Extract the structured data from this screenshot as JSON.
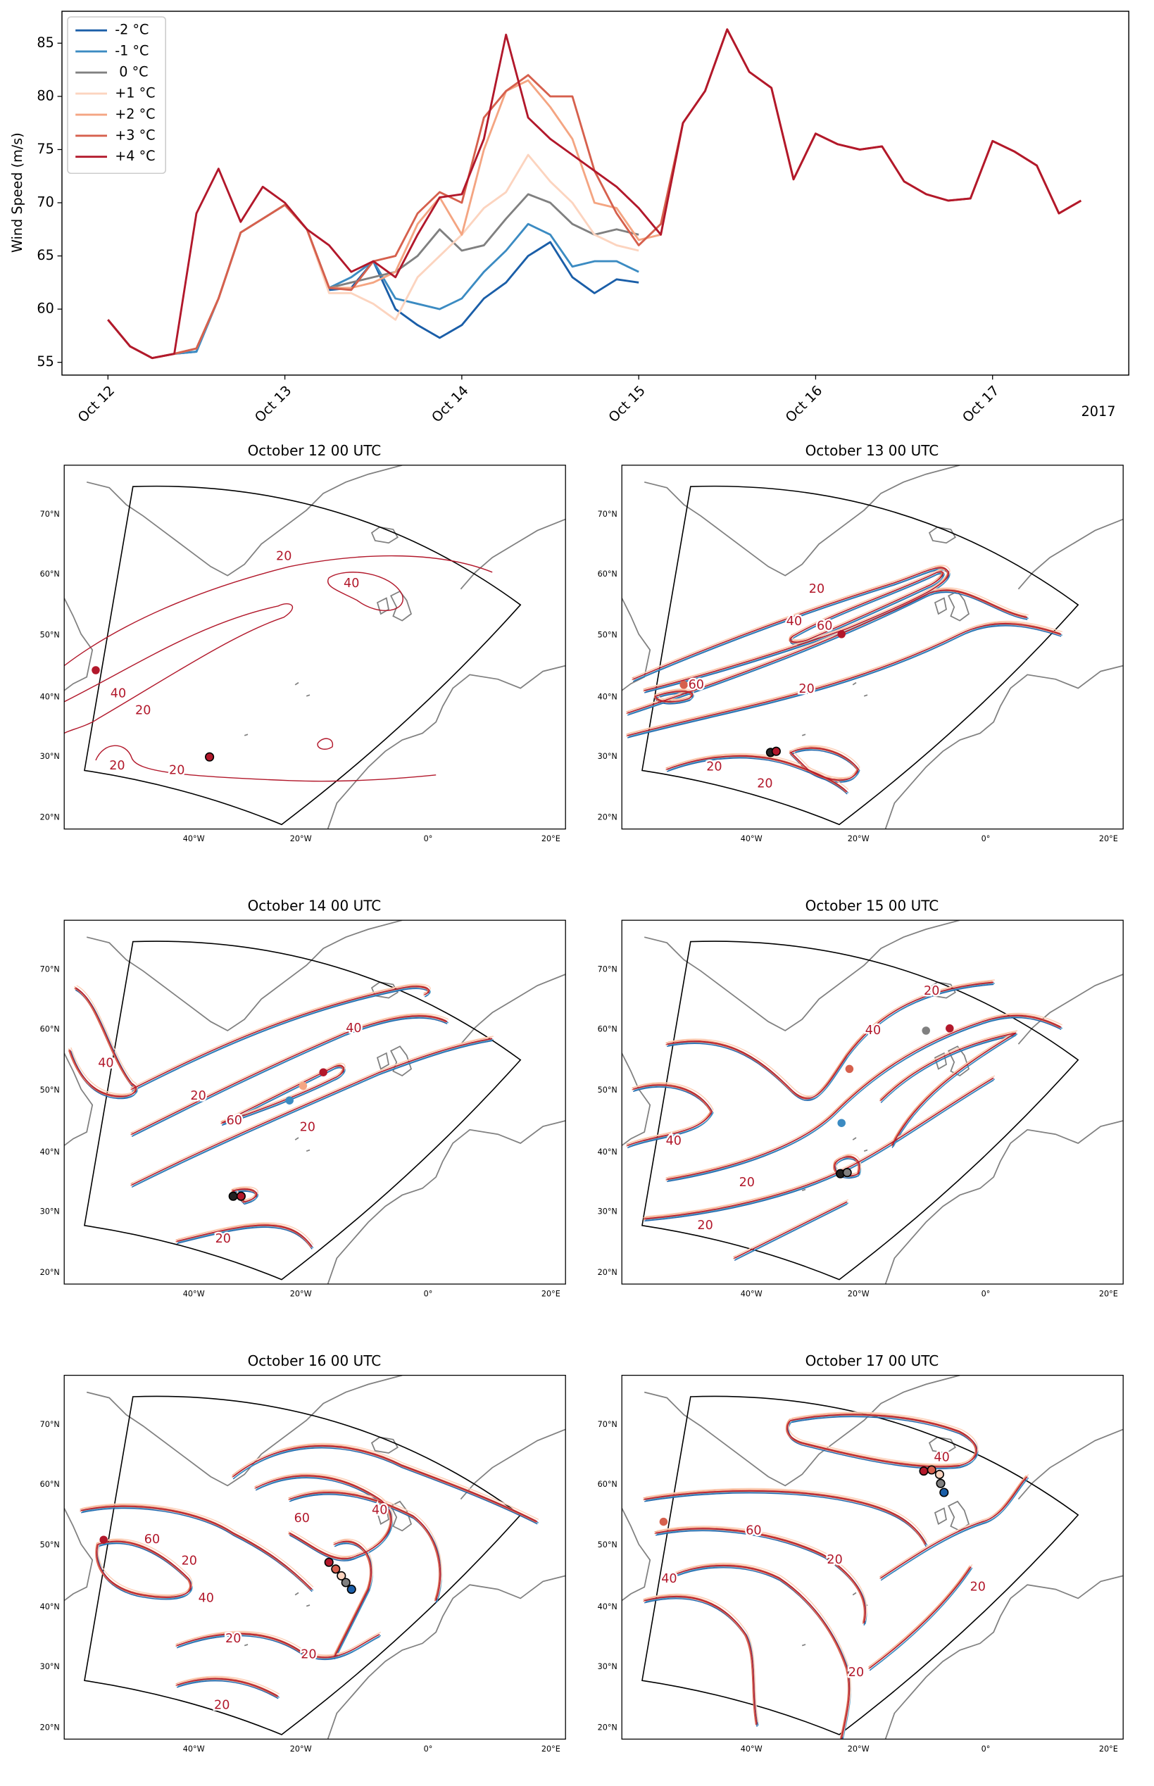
{
  "chart_data": {
    "type": "line",
    "y_label": "Wind Speed (m/s)",
    "x_offset_label": "2017",
    "x": [
      12,
      12.125,
      12.25,
      12.375,
      12.5,
      12.625,
      12.75,
      12.875,
      13,
      13.125,
      13.25,
      13.375,
      13.5,
      13.625,
      13.75,
      13.875,
      14,
      14.125,
      14.25,
      14.375,
      14.5,
      14.625,
      14.75,
      14.875,
      15,
      15.125,
      15.25,
      15.375,
      15.5,
      15.625,
      15.75,
      15.875,
      16,
      16.125,
      16.25,
      16.375,
      16.5,
      16.625,
      16.75,
      16.875,
      17,
      17.125,
      17.25,
      17.375,
      17.5
    ],
    "xlim": [
      11.74,
      17.77
    ],
    "xticks": [
      {
        "value": 12,
        "label": "Oct 12"
      },
      {
        "value": 13,
        "label": "Oct 13"
      },
      {
        "value": 14,
        "label": "Oct 14"
      },
      {
        "value": 15,
        "label": "Oct 15"
      },
      {
        "value": 16,
        "label": "Oct 16"
      },
      {
        "value": 17,
        "label": "Oct 17"
      }
    ],
    "ylim": [
      53.8,
      88.0
    ],
    "yticks": [
      55,
      60,
      65,
      70,
      75,
      80,
      85
    ],
    "legend": "upper left",
    "series": [
      {
        "name": "-2 °C",
        "color": "#1a5ea8",
        "values": [
          59,
          56.5,
          55.4,
          55.8,
          56,
          61,
          67.2,
          68.5,
          69.8,
          67.5,
          61.8,
          62,
          64.5,
          60,
          58.5,
          57.3,
          58.5,
          61,
          62.5,
          65,
          66.3,
          63,
          61.5,
          62.8,
          62.5,
          null,
          null,
          null,
          null,
          null,
          null,
          null,
          null,
          null,
          null,
          null,
          null,
          null,
          null,
          null,
          null,
          null,
          null,
          null,
          null
        ]
      },
      {
        "name": "-1 °C",
        "color": "#3b8bc2",
        "values": [
          59,
          56.5,
          55.4,
          55.8,
          56,
          61,
          67.2,
          68.5,
          69.8,
          67.5,
          62,
          63,
          64.5,
          61,
          60.5,
          60,
          61,
          63.5,
          65.5,
          68,
          67,
          64,
          64.5,
          64.5,
          63.5,
          null,
          null,
          null,
          null,
          null,
          null,
          null,
          null,
          null,
          null,
          null,
          null,
          null,
          null,
          null,
          null,
          null,
          null,
          null,
          null
        ]
      },
      {
        "name": " 0 °C",
        "color": "#808080",
        "values": [
          59,
          56.5,
          55.4,
          55.8,
          56.3,
          61,
          67.2,
          68.5,
          69.8,
          67.5,
          62,
          62.5,
          63,
          63.5,
          65,
          67.5,
          65.5,
          66,
          68.5,
          70.8,
          70,
          68,
          67,
          67.5,
          67,
          null,
          null,
          null,
          null,
          null,
          null,
          null,
          null,
          null,
          null,
          null,
          null,
          null,
          null,
          null,
          null,
          null,
          null,
          null,
          null
        ]
      },
      {
        "name": "+1 °C",
        "color": "#fcd4bf",
        "values": [
          59,
          56.5,
          55.4,
          55.8,
          56.3,
          61,
          67.2,
          68.5,
          69.8,
          67.5,
          61.5,
          61.5,
          60.5,
          59,
          63,
          65,
          67,
          69.5,
          71,
          74.5,
          72,
          70,
          67,
          66,
          65.5,
          null,
          null,
          null,
          null,
          null,
          null,
          null,
          null,
          null,
          null,
          null,
          null,
          null,
          null,
          null,
          null,
          null,
          null,
          null,
          null
        ]
      },
      {
        "name": "+2 °C",
        "color": "#f4a582",
        "values": [
          59,
          56.5,
          55.4,
          55.8,
          56.3,
          61,
          67.2,
          68.5,
          69.8,
          67.5,
          62,
          62,
          62.5,
          63.5,
          68,
          70.5,
          67,
          75,
          80.5,
          81.5,
          79,
          76,
          70,
          69.5,
          66.5,
          67,
          77.5,
          80.5,
          86.3,
          82.3,
          80.8,
          72.2,
          76.5,
          75.5,
          75,
          75.3,
          72,
          70.8,
          70.2,
          70.4,
          75.8,
          74.8,
          73.5,
          69,
          70.2
        ]
      },
      {
        "name": "+3 °C",
        "color": "#d6604d",
        "values": [
          59,
          56.5,
          55.4,
          55.8,
          56.3,
          61,
          67.2,
          68.5,
          69.8,
          67.5,
          62,
          61.8,
          64.5,
          65,
          69,
          71,
          70,
          78,
          80.5,
          82,
          80,
          80,
          73,
          69,
          66,
          68,
          77.5,
          80.5,
          86.3,
          82.3,
          80.8,
          72.2,
          76.5,
          75.5,
          75,
          75.3,
          72,
          70.8,
          70.2,
          70.4,
          75.8,
          74.8,
          73.5,
          69,
          70.2
        ]
      },
      {
        "name": "+4 °C",
        "color": "#b2182b",
        "values": [
          59,
          56.5,
          55.4,
          55.8,
          69,
          73.2,
          68.2,
          71.5,
          70,
          67.5,
          66,
          63.5,
          64.5,
          63,
          67,
          70.5,
          70.8,
          76,
          85.8,
          78,
          76,
          74.5,
          73,
          71.5,
          69.5,
          67,
          77.5,
          80.5,
          86.3,
          82.3,
          80.8,
          72.2,
          76.5,
          75.5,
          75,
          75.3,
          72,
          70.8,
          70.2,
          70.4,
          75.8,
          74.8,
          73.5,
          69,
          70.2
        ]
      }
    ]
  },
  "maps": {
    "lat_labels": [
      "70°N",
      "60°N",
      "50°N",
      "40°N",
      "30°N",
      "20°N"
    ],
    "lon_labels": [
      "40°W",
      "20°W",
      "0°",
      "20°E"
    ],
    "panels": [
      {
        "title": "October 12 00 UTC",
        "contour_labels": [
          20,
          40,
          40,
          20,
          20,
          20
        ]
      },
      {
        "title": "October 13 00 UTC",
        "contour_labels": [
          20,
          40,
          60,
          60,
          20,
          20,
          20
        ]
      },
      {
        "title": "October 14 00 UTC",
        "contour_labels": [
          40,
          40,
          20,
          60,
          20,
          20
        ]
      },
      {
        "title": "October 15 00 UTC",
        "contour_labels": [
          20,
          40,
          40,
          20,
          20
        ]
      },
      {
        "title": "October 16 00 UTC",
        "contour_labels": [
          60,
          20,
          40,
          60,
          40,
          20,
          20,
          20
        ]
      },
      {
        "title": "October 17 00 UTC",
        "contour_labels": [
          40,
          60,
          20,
          40,
          20,
          20
        ]
      }
    ]
  }
}
